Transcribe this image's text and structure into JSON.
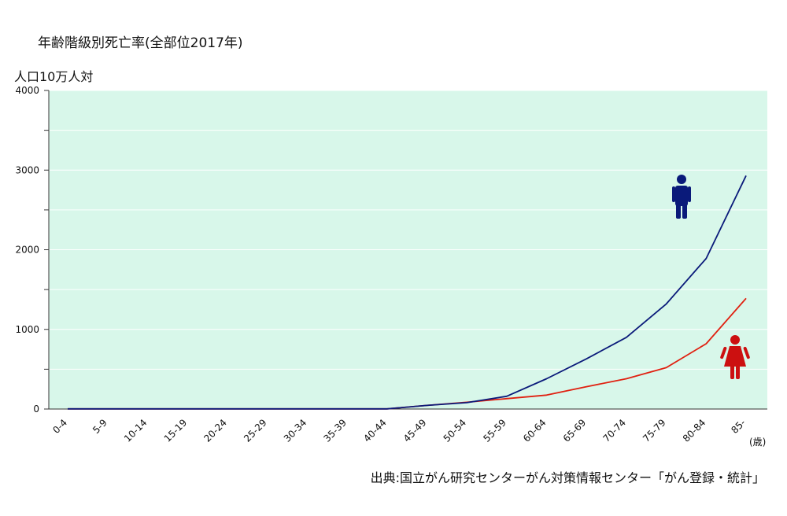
{
  "chart_data": {
    "type": "line",
    "title": "年齢階級別死亡率(全部位2017年)",
    "ylabel": "人口10万人対",
    "xunit": "(歳)",
    "source": "出典:国立がん研究センターがん対策情報センター「がん登録・統計」",
    "ylim": [
      0,
      4000
    ],
    "yticks": [
      0,
      1000,
      2000,
      3000,
      4000
    ],
    "grid": true,
    "categories": [
      "0-4",
      "5-9",
      "10-14",
      "15-19",
      "20-24",
      "25-29",
      "30-34",
      "35-39",
      "40-44",
      "45-49",
      "50-54",
      "55-59",
      "60-64",
      "65-69",
      "70-74",
      "75-79",
      "80-84",
      "85-"
    ],
    "series": [
      {
        "icon": "male-figure-icon",
        "color": "#0a1a7a",
        "values": [
          2,
          2,
          2,
          2,
          2,
          2,
          2,
          2,
          2,
          45,
          80,
          160,
          380,
          630,
          900,
          1320,
          1890,
          2930
        ]
      },
      {
        "icon": "female-figure-icon",
        "color": "#e02010",
        "values": [
          2,
          2,
          2,
          2,
          2,
          2,
          2,
          2,
          2,
          45,
          85,
          130,
          175,
          280,
          380,
          520,
          820,
          1390
        ]
      }
    ],
    "plot_bg": "#d8f7ea"
  }
}
